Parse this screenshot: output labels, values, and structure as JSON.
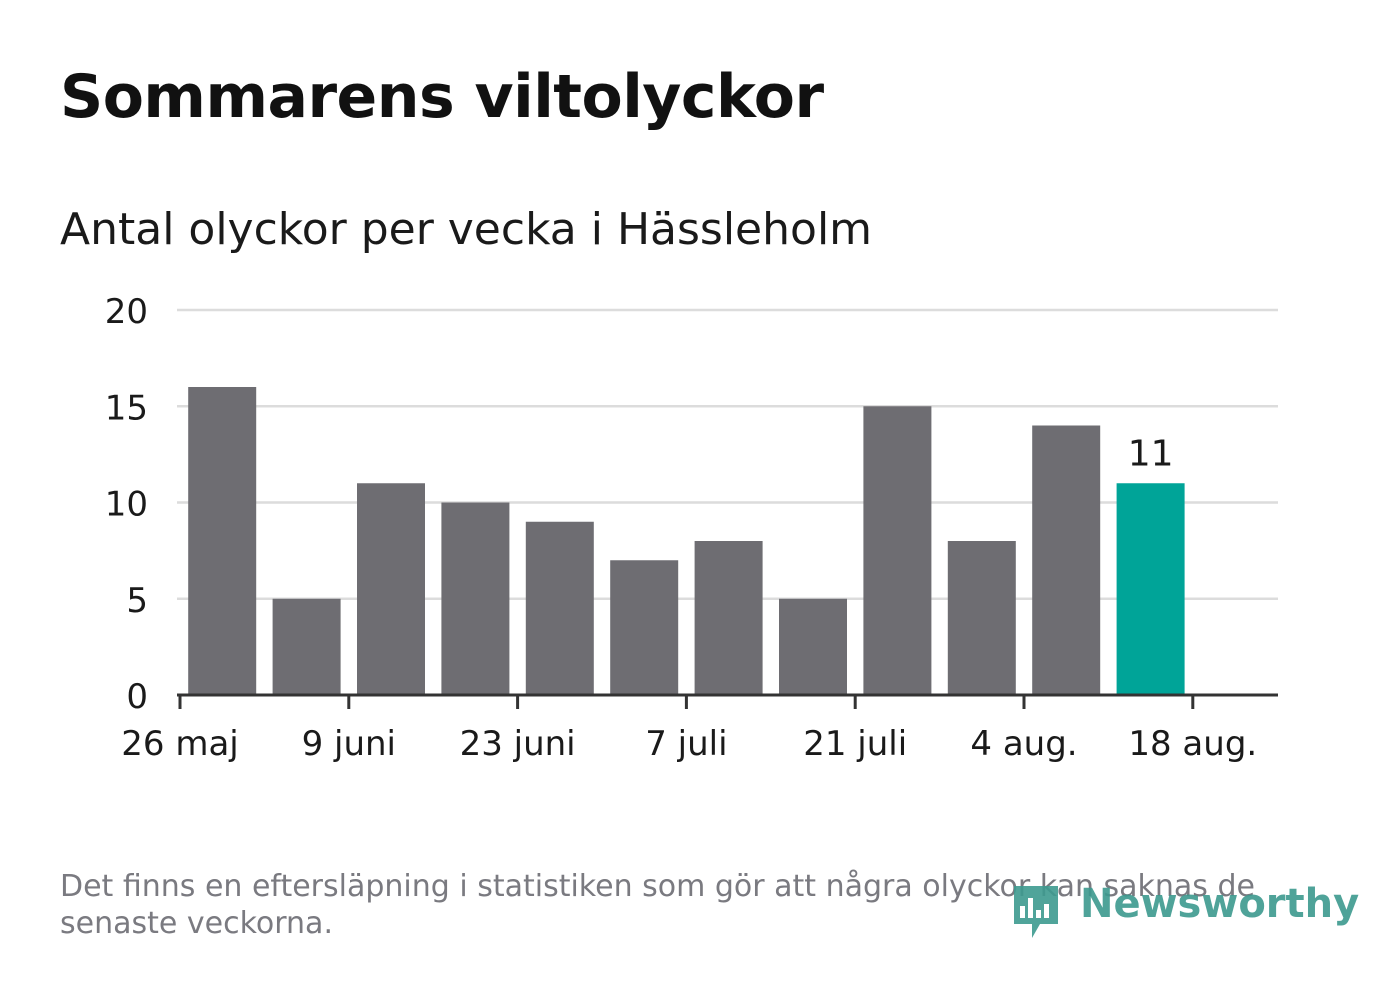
{
  "title": "Sommarens viltolyckor",
  "subtitle": "Antal olyckor per vecka i Hässleholm",
  "footnote": "Det finns en eftersläpning i statistiken som gör att några olyckor kan saknas de senaste veckorna.",
  "logo": {
    "text": "Newsworthy",
    "icon": "bar-chart-speech-bubble-icon",
    "color": "#3d9a8f"
  },
  "colors": {
    "bar": "#6e6d72",
    "highlight": "#00a498",
    "grid": "#dcdcdc",
    "axis": "#333333",
    "text": "#1a1a1a"
  },
  "chart_data": {
    "type": "bar",
    "title": "Sommarens viltolyckor",
    "subtitle": "Antal olyckor per vecka i Hässleholm",
    "xlabel": "",
    "ylabel": "",
    "ylim": [
      0,
      20
    ],
    "yticks": [
      0,
      5,
      10,
      15,
      20
    ],
    "grid": true,
    "legend": "none",
    "x_tick_labels": [
      "26 maj",
      "9 juni",
      "23 juni",
      "7 juli",
      "21 juli",
      "4 aug.",
      "18 aug."
    ],
    "x_tick_weeks": [
      "2025-05-26",
      "2025-06-09",
      "2025-06-23",
      "2025-07-07",
      "2025-07-21",
      "2025-08-04",
      "2025-08-18"
    ],
    "weeks": [
      "2025-06-02",
      "2025-06-09",
      "2025-06-16",
      "2025-06-23",
      "2025-06-30",
      "2025-07-07",
      "2025-07-14",
      "2025-07-21",
      "2025-07-28",
      "2025-08-04",
      "2025-08-11",
      "2025-08-18"
    ],
    "values": [
      16,
      5,
      11,
      10,
      9,
      7,
      8,
      5,
      15,
      8,
      14,
      11
    ],
    "highlight_last": true,
    "data_labels": [
      {
        "week": "2025-08-18",
        "label": "11"
      }
    ]
  }
}
